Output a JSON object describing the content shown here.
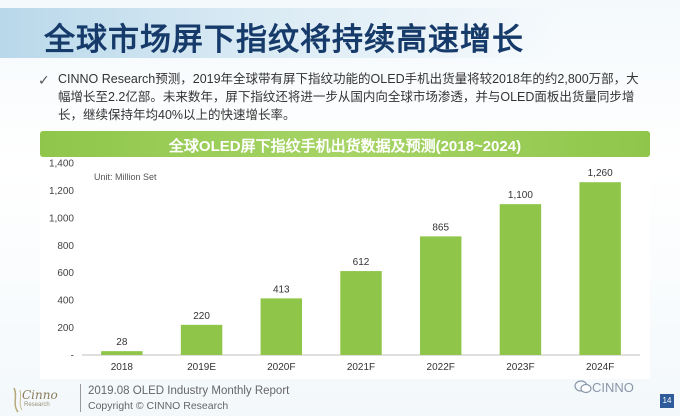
{
  "slide": {
    "title": "全球市场屏下指纹将持续高速增长",
    "bullet_icon": "check-icon",
    "intro": "CINNO Research预测，2019年全球带有屏下指纹功能的OLED手机出货量将较2018年的约2,800万部，大幅增长至2.2亿部。未来数年，屏下指纹还将进一步从国内向全球市场渗透，并与OLED面板出货量同步增长，继续保持年均40%以上的快速增长率。",
    "unit": "Unit: Million Set",
    "logo_text": "Cinno",
    "logo_sub": "Research",
    "footer_line1": "2019.08 OLED Industry Monthly Report",
    "footer_line2": "Copyright © CINNO Research",
    "watermark": "CINNO",
    "page_number": "14"
  },
  "colors": {
    "title": "#163b6a",
    "bar": "#8fc64a",
    "title_bar": "#8fc64a",
    "page_badge": "#2e5c9a"
  },
  "chart_data": {
    "type": "bar",
    "title": "全球OLED屏下指纹手机出货数据及预测(2018~2024)",
    "categories": [
      "2018",
      "2019E",
      "2020F",
      "2021F",
      "2022F",
      "2023F",
      "2024F"
    ],
    "values": [
      28,
      220,
      413,
      612,
      865,
      1100,
      1260
    ],
    "data_labels": [
      "28",
      "220",
      "413",
      "612",
      "865",
      "1,100",
      "1,260"
    ],
    "yticks": [
      "-",
      "200",
      "400",
      "600",
      "800",
      "1,000",
      "1,200",
      "1,400"
    ],
    "ylim": [
      0,
      1400
    ],
    "grid": false,
    "legend": "none"
  }
}
